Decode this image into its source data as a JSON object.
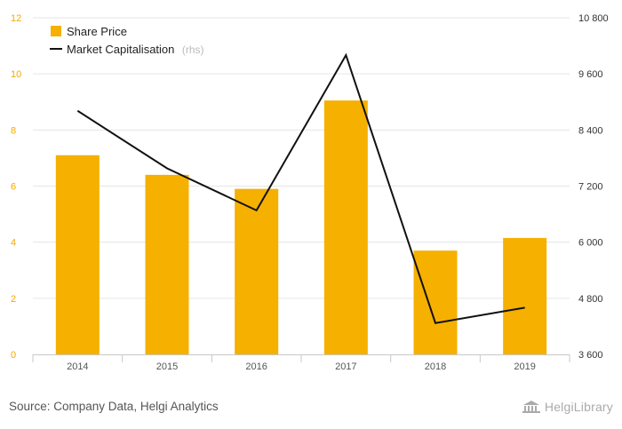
{
  "chart_data": {
    "type": "bar",
    "categories": [
      "2014",
      "2015",
      "2016",
      "2017",
      "2018",
      "2019"
    ],
    "series": [
      {
        "name": "Share Price",
        "type": "bar",
        "axis": "left",
        "color": "#f5b000",
        "values": [
          7.1,
          6.4,
          5.9,
          9.05,
          3.7,
          4.15
        ]
      },
      {
        "name": "Market Capitalisation",
        "name_suffix": "(rhs)",
        "type": "line",
        "axis": "right",
        "color": "#111111",
        "values": [
          8810,
          7580,
          6680,
          10000,
          4270,
          4600
        ]
      }
    ],
    "left_axis": {
      "min": 0,
      "max": 12,
      "ticks": [
        "0",
        "2",
        "4",
        "6",
        "8",
        "10",
        "12"
      ],
      "color": "#f5a800"
    },
    "right_axis": {
      "min": 3600,
      "max": 10800,
      "ticks": [
        "3 600",
        "4 800",
        "6 000",
        "7 200",
        "8 400",
        "9 600",
        "10 800"
      ],
      "color": "#333333"
    },
    "grid": true,
    "legend": "top-left"
  },
  "footer": {
    "source": "Source: Company Data, Helgi Analytics",
    "brand": "HelgiLibrary"
  }
}
